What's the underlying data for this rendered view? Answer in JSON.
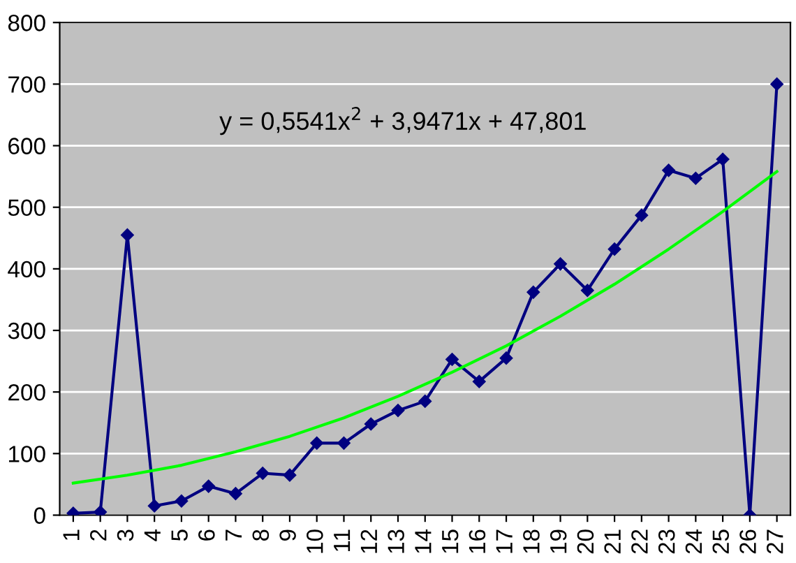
{
  "chart_data": {
    "type": "line",
    "annotations": [
      "y = 0,5541x$^{2}$ + 3,9471x + 47,801"
    ],
    "series": [
      {
        "color": "#000080",
        "marker": "diamond",
        "x": [
          1,
          2,
          3,
          4,
          5,
          6,
          7,
          8,
          9,
          10,
          11,
          12,
          13,
          14,
          15,
          16,
          17,
          18,
          19,
          20,
          21,
          22,
          23,
          24,
          25,
          26,
          27
        ],
        "values": [
          3,
          5,
          455,
          15,
          23,
          47,
          35,
          68,
          65,
          117,
          117,
          148,
          170,
          185,
          253,
          217,
          255,
          362,
          408,
          365,
          432,
          487,
          560,
          547,
          578,
          0,
          700
        ]
      },
      {
        "color": "#00ff00",
        "marker": "none",
        "x": [
          1,
          3,
          5,
          7,
          9,
          11,
          13,
          15,
          17,
          19,
          21,
          23,
          25,
          27
        ],
        "values": [
          52,
          65,
          81,
          103,
          128,
          158,
          193,
          232,
          275,
          323,
          375,
          432,
          493,
          558
        ]
      }
    ],
    "xlim": [
      0.5,
      27.5
    ],
    "xticks": [
      1,
      2,
      3,
      4,
      5,
      6,
      7,
      8,
      9,
      10,
      11,
      12,
      13,
      14,
      15,
      16,
      17,
      18,
      19,
      20,
      21,
      22,
      23,
      24,
      25,
      26,
      27
    ],
    "ylim": [
      0,
      800
    ],
    "yticks": [
      0,
      100,
      200,
      300,
      400,
      500,
      600,
      700,
      800
    ],
    "grid": "y",
    "line_style": "solid"
  }
}
